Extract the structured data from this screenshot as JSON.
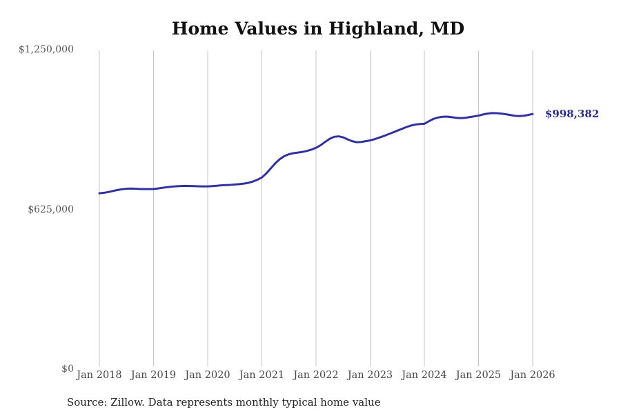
{
  "chart": {
    "title": "Home Values in Highland, MD",
    "end_label": "$998,382",
    "source_note": "Source: Zillow. Data represents monthly typical home value",
    "colors": {
      "line": "#32329e",
      "end_label": "#2b2b8a",
      "gridline": "#c5c5c5",
      "y_axis_text": "#555555",
      "x_axis_text": "#444444",
      "title_text": "#111111",
      "source_text": "#222222",
      "background": "#ffffff"
    }
  },
  "chart_data": {
    "type": "line",
    "title": "Home Values in Highland, MD",
    "ylabel": "",
    "xlabel": "",
    "ylim": [
      0,
      1250000
    ],
    "grid": "vertical-only",
    "legend": "none",
    "latest_value": 998382,
    "y_ticks": [
      {
        "label": "$0",
        "value": 0
      },
      {
        "label": "$625,000",
        "value": 625000
      },
      {
        "label": "$1,250,000",
        "value": 1250000
      }
    ],
    "x_tick_labels": [
      "Jan 2018",
      "Jan 2019",
      "Jan 2020",
      "Jan 2021",
      "Jan 2022",
      "Jan 2023",
      "Jan 2024",
      "Jan 2025",
      "Jan 2026"
    ],
    "x_tick_month_indices": [
      0,
      12,
      24,
      36,
      48,
      60,
      72,
      84,
      96
    ],
    "x": [
      "2018-01",
      "2018-02",
      "2018-03",
      "2018-04",
      "2018-05",
      "2018-06",
      "2018-07",
      "2018-08",
      "2018-09",
      "2018-10",
      "2018-11",
      "2018-12",
      "2019-01",
      "2019-02",
      "2019-03",
      "2019-04",
      "2019-05",
      "2019-06",
      "2019-07",
      "2019-08",
      "2019-09",
      "2019-10",
      "2019-11",
      "2019-12",
      "2020-01",
      "2020-02",
      "2020-03",
      "2020-04",
      "2020-05",
      "2020-06",
      "2020-07",
      "2020-08",
      "2020-09",
      "2020-10",
      "2020-11",
      "2020-12",
      "2021-01",
      "2021-02",
      "2021-03",
      "2021-04",
      "2021-05",
      "2021-06",
      "2021-07",
      "2021-08",
      "2021-09",
      "2021-10",
      "2021-11",
      "2021-12",
      "2022-01",
      "2022-02",
      "2022-03",
      "2022-04",
      "2022-05",
      "2022-06",
      "2022-07",
      "2022-08",
      "2022-09",
      "2022-10",
      "2022-11",
      "2022-12",
      "2023-01",
      "2023-02",
      "2023-03",
      "2023-04",
      "2023-05",
      "2023-06",
      "2023-07",
      "2023-08",
      "2023-09",
      "2023-10",
      "2023-11",
      "2023-12",
      "2024-01",
      "2024-02",
      "2024-03",
      "2024-04",
      "2024-05",
      "2024-06",
      "2024-07",
      "2024-08",
      "2024-09",
      "2024-10",
      "2024-11",
      "2024-12",
      "2025-01",
      "2025-02",
      "2025-03",
      "2025-04",
      "2025-05",
      "2025-06",
      "2025-07",
      "2025-08",
      "2025-09",
      "2025-10",
      "2025-11",
      "2025-12",
      "2026-01"
    ],
    "values": [
      688000,
      690000,
      693000,
      697000,
      701000,
      704000,
      706000,
      706500,
      706000,
      705000,
      704500,
      704500,
      705000,
      707000,
      709500,
      712000,
      714000,
      715500,
      716500,
      717000,
      716500,
      716000,
      715500,
      715000,
      715000,
      716000,
      717500,
      719000,
      720000,
      721000,
      722500,
      724000,
      726000,
      729000,
      734000,
      741000,
      750000,
      766000,
      786000,
      806000,
      822000,
      834000,
      841000,
      845000,
      847500,
      850000,
      854000,
      859000,
      866000,
      876000,
      889000,
      901000,
      909000,
      911000,
      907000,
      899000,
      892000,
      888000,
      889000,
      892000,
      895000,
      900000,
      906000,
      912000,
      919000,
      926000,
      933000,
      940000,
      947000,
      953000,
      957000,
      959000,
      960000,
      970000,
      979000,
      984500,
      987500,
      988000,
      986000,
      983500,
      982000,
      983500,
      986000,
      989000,
      992000,
      996500,
      1000000,
      1002000,
      1001500,
      1000000,
      997500,
      994500,
      991500,
      990000,
      991500,
      994500,
      998382
    ]
  }
}
